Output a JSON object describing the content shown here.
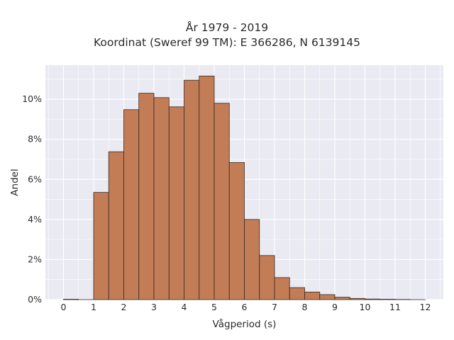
{
  "chart_data": {
    "type": "bar",
    "title": "År 1979 - 2019",
    "subtitle": "Koordinat (Sweref 99 TM): E 366286, N 6139145",
    "xlabel": "Vågperiod (s)",
    "ylabel": "Andel",
    "bin_width": 0.5,
    "bin_starts": [
      0,
      0.5,
      1,
      1.5,
      2,
      2.5,
      3,
      3.5,
      4,
      4.5,
      5,
      5.5,
      6,
      6.5,
      7,
      7.5,
      8,
      8.5,
      9,
      9.5,
      10,
      10.5,
      11,
      11.5
    ],
    "values": [
      0.02,
      0.0,
      5.35,
      7.38,
      9.48,
      10.3,
      10.08,
      9.62,
      10.95,
      11.16,
      9.8,
      6.84,
      4.0,
      2.2,
      1.1,
      0.6,
      0.38,
      0.25,
      0.12,
      0.06,
      0.03,
      0.02,
      0.01,
      0.0
    ],
    "xlim": [
      -0.6,
      12.6
    ],
    "ylim": [
      0,
      11.7
    ],
    "x_ticks": [
      0,
      1,
      2,
      3,
      4,
      5,
      6,
      7,
      8,
      9,
      10,
      11,
      12
    ],
    "y_ticks": [
      0,
      2,
      4,
      6,
      8,
      10
    ],
    "y_tick_suffix": "%",
    "grid": true,
    "colors": {
      "bar": "#c27c56",
      "edge": "#3a2a22",
      "plot_bg": "#eaeaf2",
      "grid": "#ffffff"
    }
  }
}
